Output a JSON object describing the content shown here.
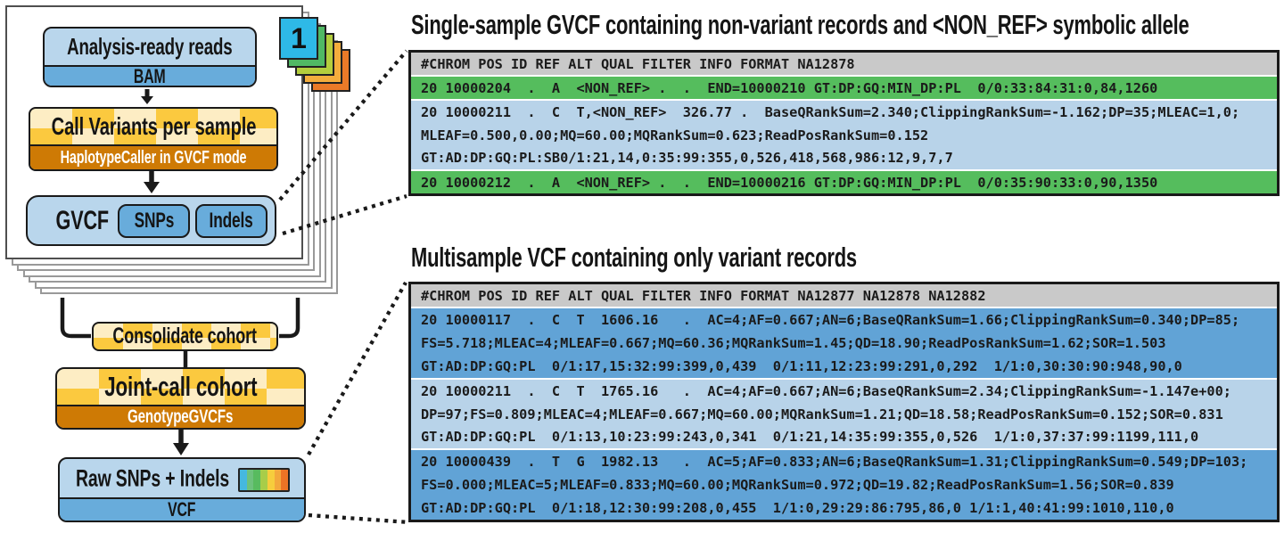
{
  "diagram": {
    "card_number": "1",
    "nodes": {
      "reads": {
        "label": "Analysis-ready reads",
        "format": "BAM"
      },
      "call_variants": {
        "label": "Call Variants per sample",
        "tool": "HaplotypeCaller in GVCF mode"
      },
      "gvcf": {
        "label": "GVCF",
        "snps": "SNPs",
        "indels": "Indels"
      },
      "consolidate": {
        "label": "Consolidate cohort"
      },
      "joint_call": {
        "label": "Joint-call cohort",
        "tool": "GenotypeGVCFs"
      },
      "raw": {
        "label": "Raw SNPs + Indels",
        "format": "VCF",
        "icon_stripes": [
          "#45b8e0",
          "#6ec17c",
          "#58bb5f",
          "#a8cd49",
          "#f6cd3d",
          "#f3a83c",
          "#eb7325"
        ]
      }
    }
  },
  "panels": [
    {
      "title": "Single-sample GVCF containing non-variant records and <NON_REF> symbolic allele",
      "header": "#CHROM POS ID REF ALT QUAL FILTER INFO FORMAT NA12878",
      "rows": [
        {
          "tone": "green",
          "text": "20 10000204  .  A  <NON_REF> .  .  END=10000210 GT:DP:GQ:MIN_DP:PL  0/0:33:84:31:0,84,1260"
        },
        {
          "tone": "blue-light",
          "text": "20 10000211  .  C  T,<NON_REF>  326.77 .  BaseQRankSum=2.340;ClippingRankSum=-1.162;DP=35;MLEAC=1,0;\nMLEAF=0.500,0.00;MQ=60.00;MQRankSum=0.623;ReadPosRankSum=0.152\nGT:AD:DP:GQ:PL:SB0/1:21,14,0:35:99:355,0,526,418,568,986:12,9,7,7"
        },
        {
          "tone": "green",
          "text": "20 10000212  .  A  <NON_REF> .  .  END=10000216 GT:DP:GQ:MIN_DP:PL  0/0:35:90:33:0,90,1350"
        }
      ]
    },
    {
      "title": "Multisample VCF containing only variant records",
      "header": "#CHROM POS ID REF ALT QUAL FILTER INFO FORMAT NA12877 NA12878 NA12882",
      "rows": [
        {
          "tone": "blue-mid",
          "text": "20 10000117  .  C  T  1606.16   .  AC=4;AF=0.667;AN=6;BaseQRankSum=1.66;ClippingRankSum=0.340;DP=85;\nFS=5.718;MLEAC=4;MLEAF=0.667;MQ=60.36;MQRankSum=1.45;QD=18.90;ReadPosRankSum=1.62;SOR=1.503\nGT:AD:DP:GQ:PL  0/1:17,15:32:99:399,0,439  0/1:11,12:23:99:291,0,292  1/1:0,30:30:90:948,90,0"
        },
        {
          "tone": "blue-light",
          "text": "20 10000211  .  C  T  1765.16   .  AC=4;AF=0.667;AN=6;BaseQRankSum=2.34;ClippingRankSum=-1.147e+00;\nDP=97;FS=0.809;MLEAC=4;MLEAF=0.667;MQ=60.00;MQRankSum=1.21;QD=18.58;ReadPosRankSum=0.152;SOR=0.831\nGT:AD:DP:GQ:PL  0/1:13,10:23:99:243,0,341  0/1:21,14:35:99:355,0,526  1/1:0,37:37:99:1199,111,0"
        },
        {
          "tone": "blue-mid",
          "text": "20 10000439  .  T  G  1982.13   .  AC=5;AF=0.833;AN=6;BaseQRankSum=1.31;ClippingRankSum=0.549;DP=103;\nFS=0.000;MLEAC=5;MLEAF=0.833;MQ=60.00;MQRankSum=0.972;QD=19.82;ReadPosRankSum=1.56;SOR=0.839\nGT:AD:DP:GQ:PL  0/1:18,12:30:99:208,0,455  1/1:0,29:29:86:795,86,0 1/1:1,40:41:99:1010,110,0"
        }
      ]
    }
  ],
  "colors": {
    "page-border": "#999999",
    "front-border": "#4f4f4f",
    "blue-light": "#b9d6ec",
    "blue-mid": "#68acdb",
    "yellow-light": "#fdedc4",
    "yellow-gold": "#fbc93f",
    "orange-bar": "#ce7a05",
    "ink": "#1a1a1a",
    "card-blue": "#2eb9e7",
    "card-green": "#50b964",
    "card-lime": "#b4ce3d",
    "card-amber": "#f4ad3d",
    "card-orange": "#ea7a28",
    "tbl-header": "#c9c9c9",
    "tbl-green": "#55bd5d",
    "tbl-blue-light": "#b8d3e9",
    "tbl-blue-mid": "#61a3d6",
    "tbl-border": "#191919",
    "text-mono": "#1b1b1b"
  }
}
